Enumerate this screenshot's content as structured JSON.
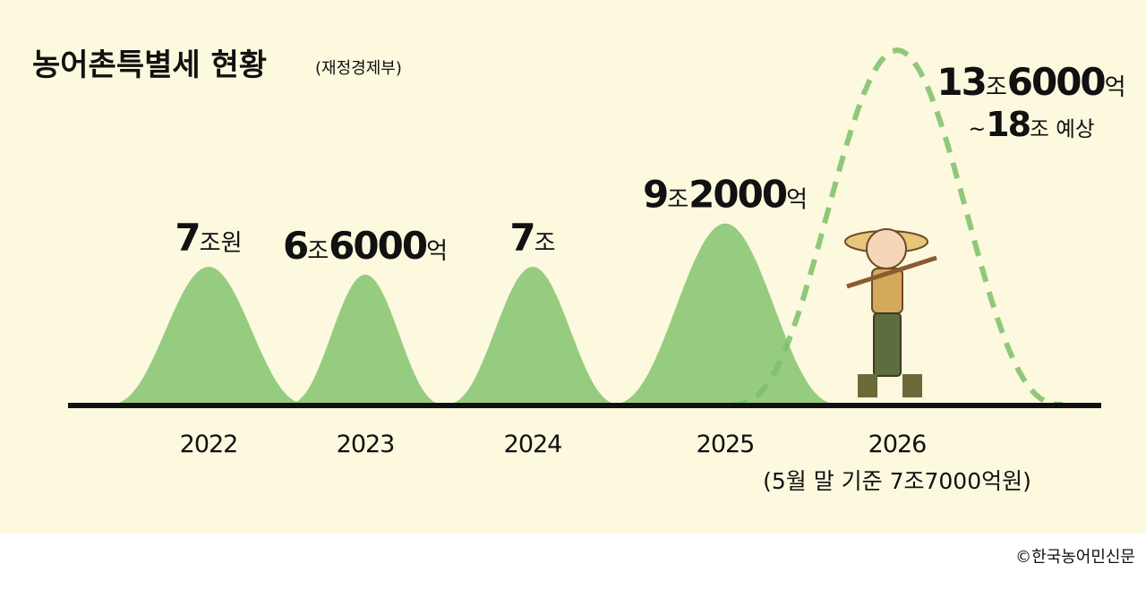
{
  "chart_data": {
    "type": "bell",
    "title": "농어촌특별세 현황",
    "source": "(재정경제부)",
    "categories": [
      "2022",
      "2023",
      "2024",
      "2025",
      "2026"
    ],
    "values": [
      7,
      6.6,
      7,
      9.2,
      13.6
    ],
    "value_labels": [
      "7조원",
      "6조6000억",
      "7조",
      "9조2000억",
      "13조6000억"
    ],
    "range_high": [
      null,
      null,
      null,
      null,
      18
    ],
    "range_labels": [
      null,
      null,
      null,
      null,
      "~18조 예상"
    ],
    "note": "(5월 말 기준 7조7000억원)",
    "color": "#7cc068",
    "credit": "©한국농어민신문"
  }
}
